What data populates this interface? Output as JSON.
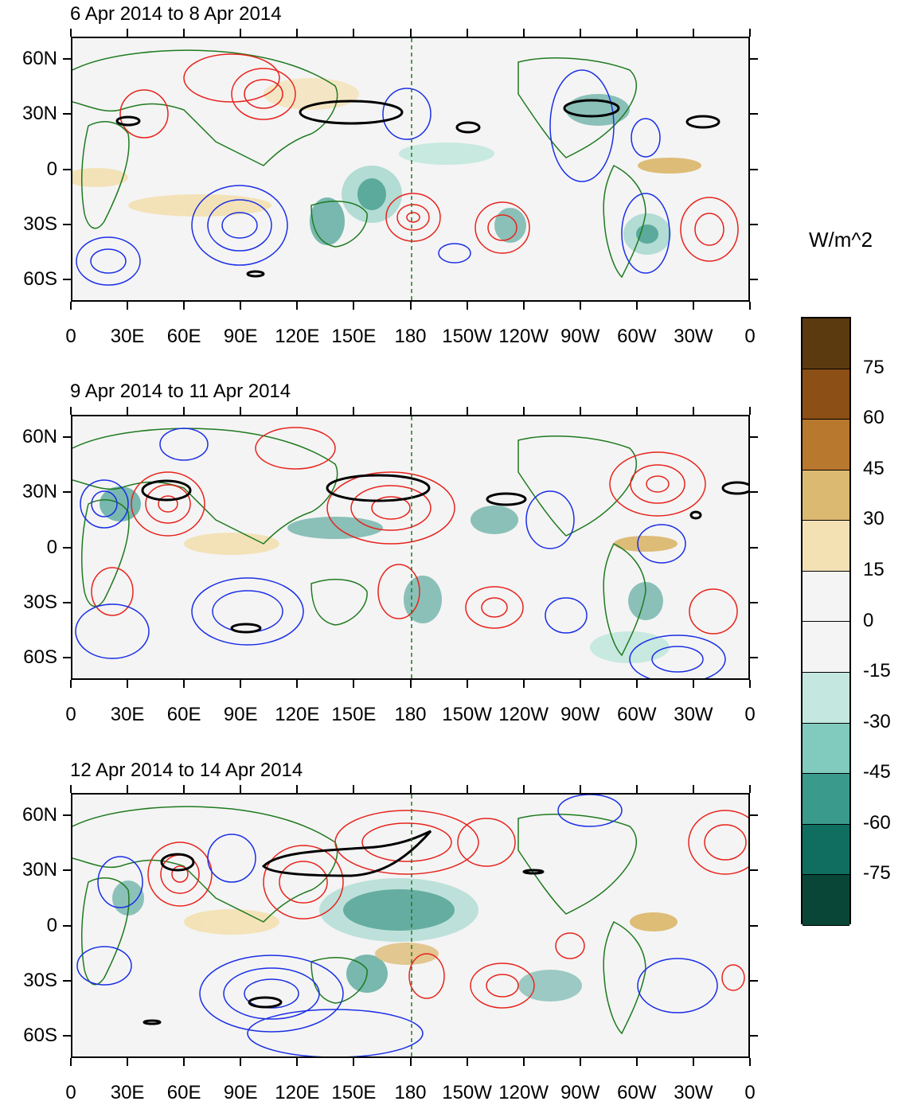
{
  "panels": [
    {
      "title": "6 Apr 2014 to 8 Apr 2014"
    },
    {
      "title": "9 Apr 2014 to 11 Apr 2014"
    },
    {
      "title": "12 Apr 2014 to 14 Apr 2014"
    }
  ],
  "y_axis": {
    "labels": [
      "60N",
      "30N",
      "0",
      "30S",
      "60S"
    ],
    "lats": [
      60,
      30,
      0,
      -30,
      -60
    ]
  },
  "x_axis": {
    "labels": [
      "0",
      "30E",
      "60E",
      "90E",
      "120E",
      "150E",
      "180",
      "150W",
      "120W",
      "90W",
      "60W",
      "30W",
      "0"
    ],
    "lons": [
      0,
      30,
      60,
      90,
      120,
      150,
      180,
      210,
      240,
      270,
      300,
      330,
      360
    ]
  },
  "colorbar": {
    "units": "W/m^2",
    "labels": [
      "75",
      "60",
      "45",
      "30",
      "15",
      "0",
      "-15",
      "-30",
      "-45",
      "-60",
      "-75"
    ],
    "colors": [
      "#5b3a10",
      "#8c4f15",
      "#b8782e",
      "#dcb970",
      "#f3e1b4",
      "#f4f4f4",
      "#f4f4f4",
      "#c4e8df",
      "#80cbbd",
      "#3a9a8c",
      "#0f6e60",
      "#0a4638"
    ]
  },
  "colors": {
    "land_outline": "#1f7a1f",
    "positive_contour": "#e8231c",
    "negative_contour": "#1a2ee6",
    "bold_contour": "#000000"
  }
}
